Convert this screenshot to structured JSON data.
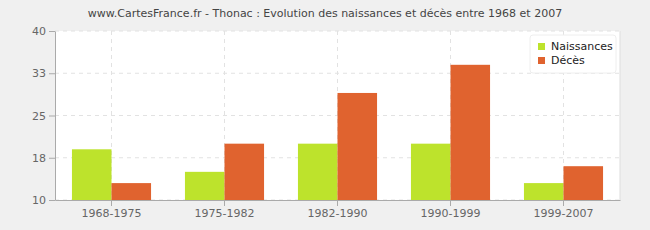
{
  "chart_data": {
    "type": "bar",
    "title": "www.CartesFrance.fr - Thonac : Evolution des naissances et décès entre 1968 et 2007",
    "categories": [
      "1968-1975",
      "1975-1982",
      "1982-1990",
      "1990-1999",
      "1999-2007"
    ],
    "series": [
      {
        "name": "Naissances",
        "color": "#bde32c",
        "values": [
          19,
          15,
          20,
          20,
          13
        ]
      },
      {
        "name": "Décès",
        "color": "#e0632f",
        "values": [
          13,
          20,
          29,
          34,
          16
        ]
      }
    ],
    "ylim": [
      10,
      40
    ],
    "yticks": [
      10,
      {
        "value": 17.5,
        "label": "18"
      },
      25,
      {
        "value": 32.5,
        "label": "33"
      },
      40
    ],
    "grid": true,
    "legend": "upper right"
  }
}
